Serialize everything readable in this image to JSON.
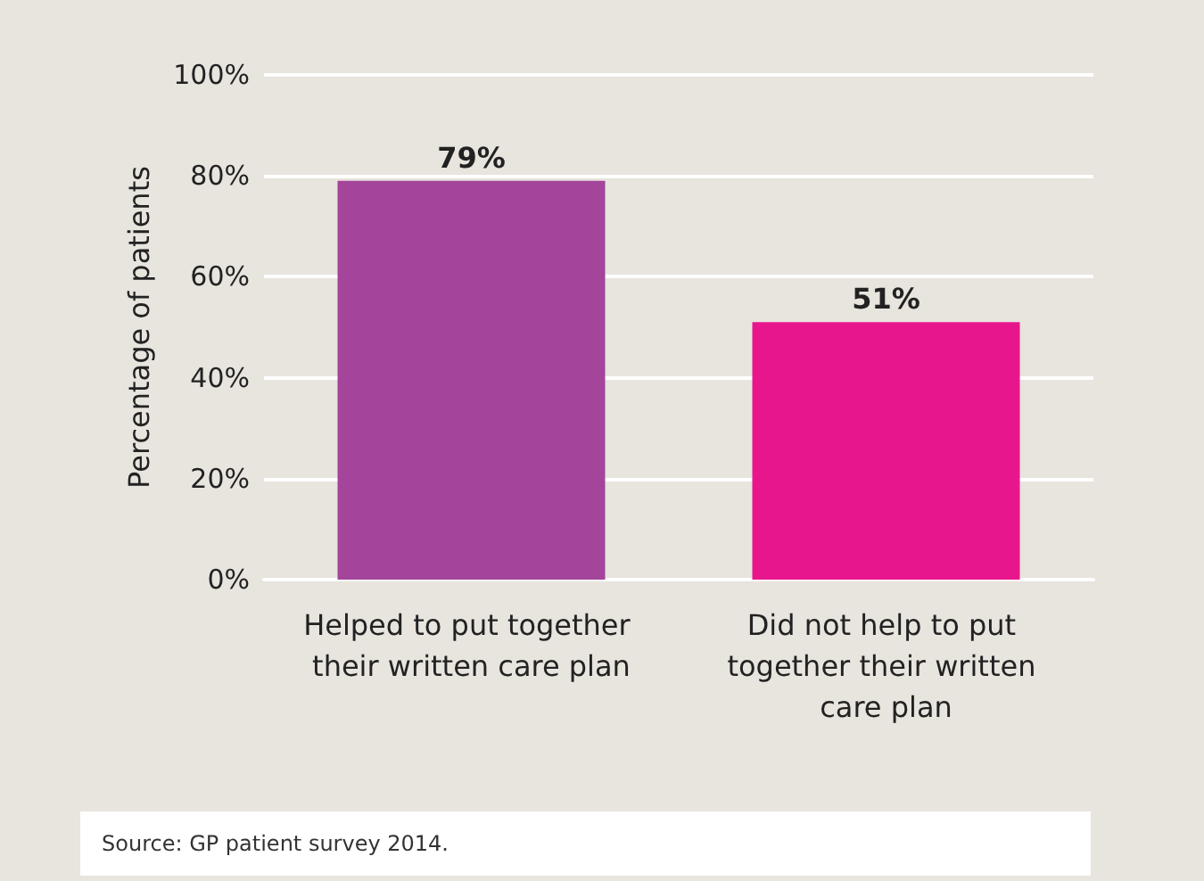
{
  "chart_data": {
    "type": "bar",
    "categories": [
      "Helped to put together their written care plan",
      "Did not help to put together their written care plan"
    ],
    "values": [
      79,
      51
    ],
    "colors": [
      "#a4449a",
      "#e8168c"
    ],
    "value_labels": [
      "79%",
      "51%"
    ],
    "ylabel": "Percentage of patients",
    "ylim": [
      0,
      100
    ],
    "yticks": [
      {
        "value": 0,
        "label": "0%"
      },
      {
        "value": 20,
        "label": "20%"
      },
      {
        "value": 40,
        "label": "40%"
      },
      {
        "value": 60,
        "label": "60%"
      },
      {
        "value": 80,
        "label": "80%"
      },
      {
        "value": 100,
        "label": "100%"
      }
    ],
    "grid": "y",
    "annotations": [
      "Source: GP patient survey 2014."
    ]
  }
}
